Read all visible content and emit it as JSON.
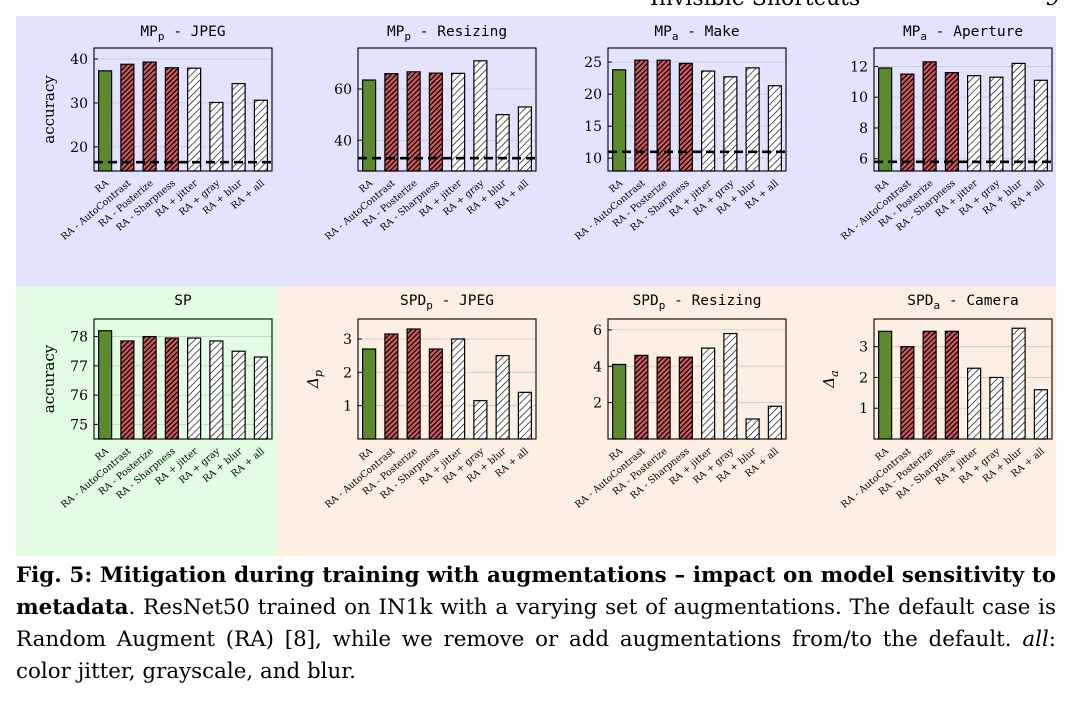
{
  "page_header": {
    "running_title": "Invisible Shortcuts",
    "page_number": "9"
  },
  "colors": {
    "ra": "#5c8a2d",
    "removed": "#cf5a5c",
    "added": "#ffffff",
    "panel_blue": "#e3e3ff",
    "panel_green": "#e3fde3",
    "panel_orange": "#fdefe2",
    "grid": "#c8c8c8"
  },
  "chart_data": [
    {
      "type": "bar",
      "title": "MPp - JPEG",
      "title_base": "MP",
      "title_sub": "p",
      "title_rest": " - JPEG",
      "ylabel": "accuracy",
      "ylabel_base": "accuracy",
      "ylabel_sub": "",
      "categories": [
        "RA",
        "RA - AutoContrast",
        "RA - Posterize",
        "RA - Sharpness",
        "RA + jitter",
        "RA + gray",
        "RA + blur",
        "RA + all"
      ],
      "values": [
        37.3,
        38.8,
        39.3,
        38.0,
        37.9,
        30.1,
        34.4,
        30.6
      ],
      "kinds": [
        "ra",
        "removed",
        "removed",
        "removed",
        "added",
        "added",
        "added",
        "added"
      ],
      "ylim": [
        14.5,
        42.5
      ],
      "yticks": [
        20,
        30,
        40
      ],
      "baseline": 16.5,
      "grid": true
    },
    {
      "type": "bar",
      "title": "MPp - Resizing",
      "title_base": "MP",
      "title_sub": "p",
      "title_rest": " - Resizing",
      "ylabel": "",
      "ylabel_base": "",
      "ylabel_sub": "",
      "categories": [
        "RA",
        "RA - AutoContrast",
        "RA - Posterize",
        "RA - Sharpness",
        "RA + jitter",
        "RA + gray",
        "RA + blur",
        "RA + all"
      ],
      "values": [
        63.5,
        66.0,
        66.7,
        66.2,
        66.1,
        71.0,
        50.0,
        53.0
      ],
      "kinds": [
        "ra",
        "removed",
        "removed",
        "removed",
        "added",
        "added",
        "added",
        "added"
      ],
      "ylim": [
        28,
        76
      ],
      "yticks": [
        40,
        60
      ],
      "baseline": 33,
      "grid": true
    },
    {
      "type": "bar",
      "title": "MPa - Make",
      "title_base": "MP",
      "title_sub": "a",
      "title_rest": " - Make",
      "ylabel": "",
      "ylabel_base": "",
      "ylabel_sub": "",
      "categories": [
        "RA",
        "RA - AutoContrast",
        "RA - Posterize",
        "RA - Sharpness",
        "RA + jitter",
        "RA + gray",
        "RA + blur",
        "RA + all"
      ],
      "values": [
        23.8,
        25.3,
        25.3,
        24.8,
        23.6,
        22.7,
        24.1,
        21.3
      ],
      "kinds": [
        "ra",
        "removed",
        "removed",
        "removed",
        "added",
        "added",
        "added",
        "added"
      ],
      "ylim": [
        8,
        27.2
      ],
      "yticks": [
        10,
        15,
        20,
        25
      ],
      "baseline": 11,
      "grid": true
    },
    {
      "type": "bar",
      "title": "MPa - Aperture",
      "title_base": "MP",
      "title_sub": "a",
      "title_rest": " - Aperture",
      "ylabel": "",
      "ylabel_base": "",
      "ylabel_sub": "",
      "categories": [
        "RA",
        "RA - AutoContrast",
        "RA - Posterize",
        "RA - Sharpness",
        "RA + jitter",
        "RA + gray",
        "RA + blur",
        "RA + all"
      ],
      "values": [
        11.9,
        11.5,
        12.3,
        11.6,
        11.4,
        11.3,
        12.2,
        11.1
      ],
      "kinds": [
        "ra",
        "removed",
        "removed",
        "removed",
        "added",
        "added",
        "added",
        "added"
      ],
      "ylim": [
        5.2,
        13.2
      ],
      "yticks": [
        6,
        8,
        10,
        12
      ],
      "baseline": 5.8,
      "grid": true
    },
    {
      "type": "bar",
      "title": "SP",
      "title_base": "SP",
      "title_sub": "",
      "title_rest": "",
      "ylabel": "accuracy",
      "ylabel_base": "accuracy",
      "ylabel_sub": "",
      "categories": [
        "RA",
        "RA - AutoContrast",
        "RA - Posterize",
        "RA - Sharpness",
        "RA + jitter",
        "RA + gray",
        "RA + blur",
        "RA + all"
      ],
      "values": [
        78.2,
        77.85,
        78.0,
        77.95,
        77.95,
        77.85,
        77.5,
        77.3
      ],
      "kinds": [
        "ra",
        "removed",
        "removed",
        "removed",
        "added",
        "added",
        "added",
        "added"
      ],
      "ylim": [
        74.5,
        78.6
      ],
      "yticks": [
        75,
        76,
        77,
        78
      ],
      "grid": true
    },
    {
      "type": "bar",
      "title": "SPDp - JPEG",
      "title_base": "SPD",
      "title_sub": "p",
      "title_rest": " - JPEG",
      "ylabel": "Δp",
      "ylabel_base": "Δ",
      "ylabel_sub": "p",
      "categories": [
        "RA",
        "RA - AutoContrast",
        "RA - Posterize",
        "RA - Sharpness",
        "RA + jitter",
        "RA + gray",
        "RA + blur",
        "RA + all"
      ],
      "values": [
        2.7,
        3.15,
        3.3,
        2.7,
        3.0,
        1.15,
        2.5,
        1.4
      ],
      "kinds": [
        "ra",
        "removed",
        "removed",
        "removed",
        "added",
        "added",
        "added",
        "added"
      ],
      "ylim": [
        0,
        3.6
      ],
      "yticks": [
        1,
        2,
        3
      ],
      "grid": true
    },
    {
      "type": "bar",
      "title": "SPDp - Resizing",
      "title_base": "SPD",
      "title_sub": "p",
      "title_rest": " - Resizing",
      "ylabel": "",
      "ylabel_base": "",
      "ylabel_sub": "",
      "categories": [
        "RA",
        "RA - AutoContrast",
        "RA - Posterize",
        "RA - Sharpness",
        "RA + jitter",
        "RA + gray",
        "RA + blur",
        "RA + all"
      ],
      "values": [
        4.1,
        4.6,
        4.5,
        4.5,
        5.0,
        5.8,
        1.1,
        1.8
      ],
      "kinds": [
        "ra",
        "removed",
        "removed",
        "removed",
        "added",
        "added",
        "added",
        "added"
      ],
      "ylim": [
        0,
        6.6
      ],
      "yticks": [
        2,
        4,
        6
      ],
      "grid": true
    },
    {
      "type": "bar",
      "title": "SPDa - Camera",
      "title_base": "SPD",
      "title_sub": "a",
      "title_rest": " - Camera",
      "ylabel": "Δa",
      "ylabel_base": "Δ",
      "ylabel_sub": "a",
      "categories": [
        "RA",
        "RA - AutoContrast",
        "RA - Posterize",
        "RA - Sharpness",
        "RA + jitter",
        "RA + gray",
        "RA + blur",
        "RA + all"
      ],
      "values": [
        3.5,
        3.0,
        3.5,
        3.5,
        2.3,
        2.0,
        3.6,
        1.6
      ],
      "kinds": [
        "ra",
        "removed",
        "removed",
        "removed",
        "added",
        "added",
        "added",
        "added"
      ],
      "ylim": [
        0,
        3.9
      ],
      "yticks": [
        1,
        2,
        3
      ],
      "grid": true
    }
  ],
  "caption": {
    "label": "Fig. 5: Mitigation during training with augmentations – impact on model sensitivity to metadata",
    "text_1": ". ResNet50 trained on IN1k with a varying set of augmentations. The default case is Random Augment (RA) [8], while we remove or add augmentations from/to the default. ",
    "all_term": "all",
    "text_2": ": color jitter, grayscale, and blur."
  }
}
